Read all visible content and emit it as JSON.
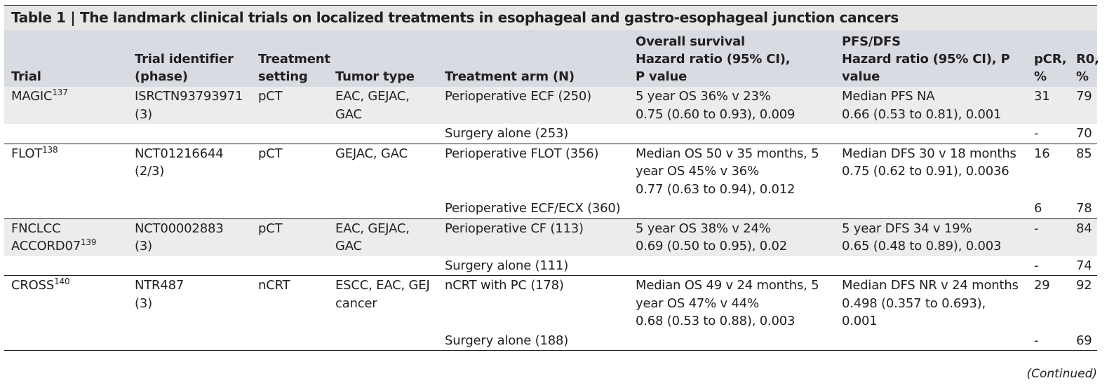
{
  "title": "Table 1 | The landmark clinical trials on localized treatments in esophageal and gastro-esophageal junction cancers",
  "headers": [
    "Trial",
    "Trial identifier\n(phase)",
    "Treatment\nsetting",
    "Tumor type",
    "Treatment arm (N)",
    "Overall survival\nHazard ratio (95% CI),\nP value",
    "PFS/DFS\nHazard ratio (95% CI), P\nvalue",
    "pCR,\n%",
    "R0,\n%"
  ],
  "rows": [
    {
      "trial": "MAGIC",
      "ref": "137",
      "id": "ISRCTN93793971\n(3)",
      "setting": "pCT",
      "tumor": "EAC, GEJAC, GAC",
      "arm": "Perioperative ECF (250)",
      "os": "5 year OS 36% v 23%\n0.75 (0.60 to 0.93), 0.009",
      "pfs": "Median PFS NA\n0.66 (0.53 to 0.81), 0.001",
      "pcr": "31",
      "r0": "79"
    },
    {
      "trial": "",
      "ref": "",
      "id": "",
      "setting": "",
      "tumor": "",
      "arm": "Surgery alone (253)",
      "os": "",
      "pfs": "",
      "pcr": "-",
      "r0": "70"
    },
    {
      "trial": "FLOT",
      "ref": "138",
      "id": "NCT01216644\n(2/3)",
      "setting": "pCT",
      "tumor": "GEJAC, GAC",
      "arm": "Perioperative FLOT (356)",
      "os": "Median OS 50 v 35 months, 5\nyear OS 45% v 36%\n0.77 (0.63 to 0.94), 0.012",
      "pfs": "Median DFS 30 v 18 months\n0.75 (0.62 to 0.91), 0.0036",
      "pcr": "16",
      "r0": "85"
    },
    {
      "trial": "",
      "ref": "",
      "id": "",
      "setting": "",
      "tumor": "",
      "arm": "Perioperative ECF/ECX (360)",
      "os": "",
      "pfs": "",
      "pcr": "6",
      "r0": "78"
    },
    {
      "trial": "FNCLCC\nACCORD07",
      "ref": "139",
      "id": "NCT00002883\n(3)",
      "setting": "pCT",
      "tumor": "EAC, GEJAC, GAC",
      "arm": "Perioperative CF (113)",
      "os": "5 year OS 38% v 24%\n0.69 (0.50 to 0.95), 0.02",
      "pfs": "5 year DFS 34 v 19%\n0.65 (0.48 to 0.89), 0.003",
      "pcr": "-",
      "r0": "84"
    },
    {
      "trial": "",
      "ref": "",
      "id": "",
      "setting": "",
      "tumor": "",
      "arm": "Surgery alone (111)",
      "os": "",
      "pfs": "",
      "pcr": "-",
      "r0": "74"
    },
    {
      "trial": "CROSS",
      "ref": "140",
      "id": "NTR487\n(3)",
      "setting": "nCRT",
      "tumor": "ESCC, EAC, GEJ\ncancer",
      "arm": "nCRT with PC (178)",
      "os": "Median OS 49 v 24 months, 5\nyear OS 47% v 44%\n0.68 (0.53 to 0.88), 0.003",
      "pfs": "Median DFS NR v 24 months\n0.498 (0.357 to 0.693),\n0.001",
      "pcr": "29",
      "r0": "92"
    },
    {
      "trial": "",
      "ref": "",
      "id": "",
      "setting": "",
      "tumor": "",
      "arm": "Surgery alone (188)",
      "os": "",
      "pfs": "",
      "pcr": "-",
      "r0": "69"
    }
  ],
  "footer": "(Continued)"
}
